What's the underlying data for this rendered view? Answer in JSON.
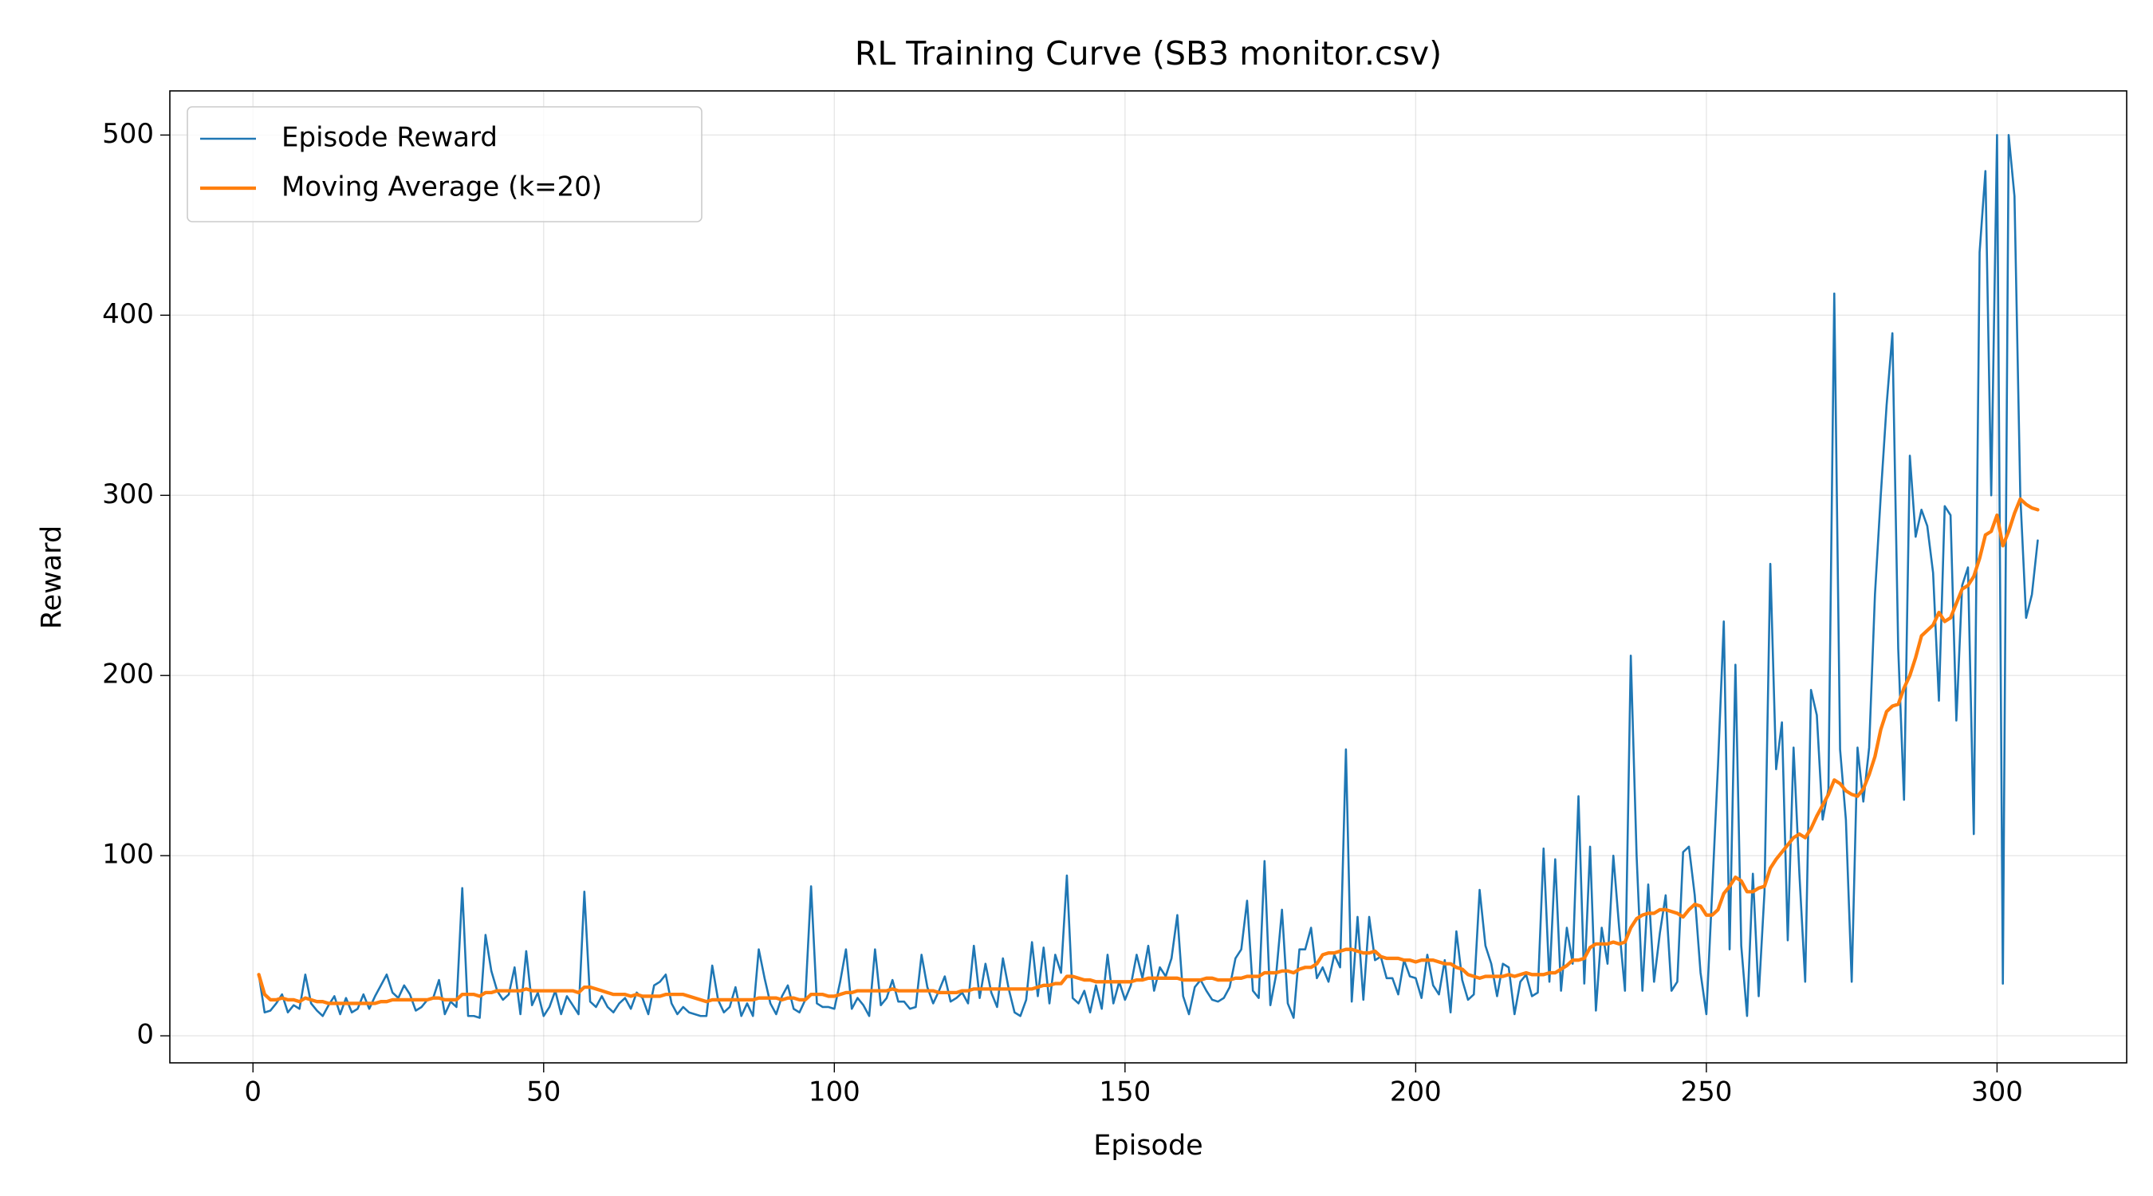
{
  "chart_data": {
    "type": "line",
    "title": "RL Training Curve (SB3 monitor.csv)",
    "xlabel": "Episode",
    "ylabel": "Reward",
    "x": [
      1,
      2,
      3,
      4,
      5,
      6,
      7,
      8,
      9,
      10,
      11,
      12,
      13,
      14,
      15,
      16,
      17,
      18,
      19,
      20,
      21,
      22,
      23,
      24,
      25,
      26,
      27,
      28,
      29,
      30,
      31,
      32,
      33,
      34,
      35,
      36,
      37,
      38,
      39,
      40,
      41,
      42,
      43,
      44,
      45,
      46,
      47,
      48,
      49,
      50,
      51,
      52,
      53,
      54,
      55,
      56,
      57,
      58,
      59,
      60,
      61,
      62,
      63,
      64,
      65,
      66,
      67,
      68,
      69,
      70,
      71,
      72,
      73,
      74,
      75,
      76,
      77,
      78,
      79,
      80,
      81,
      82,
      83,
      84,
      85,
      86,
      87,
      88,
      89,
      90,
      91,
      92,
      93,
      94,
      95,
      96,
      97,
      98,
      99,
      100,
      101,
      102,
      103,
      104,
      105,
      106,
      107,
      108,
      109,
      110,
      111,
      112,
      113,
      114,
      115,
      116,
      117,
      118,
      119,
      120,
      121,
      122,
      123,
      124,
      125,
      126,
      127,
      128,
      129,
      130,
      131,
      132,
      133,
      134,
      135,
      136,
      137,
      138,
      139,
      140,
      141,
      142,
      143,
      144,
      145,
      146,
      147,
      148,
      149,
      150,
      151,
      152,
      153,
      154,
      155,
      156,
      157,
      158,
      159,
      160,
      161,
      162,
      163,
      164,
      165,
      166,
      167,
      168,
      169,
      170,
      171,
      172,
      173,
      174,
      175,
      176,
      177,
      178,
      179,
      180,
      181,
      182,
      183,
      184,
      185,
      186,
      187,
      188,
      189,
      190,
      191,
      192,
      193,
      194,
      195,
      196,
      197,
      198,
      199,
      200,
      201,
      202,
      203,
      204,
      205,
      206,
      207,
      208,
      209,
      210,
      211,
      212,
      213,
      214,
      215,
      216,
      217,
      218,
      219,
      220,
      221,
      222,
      223,
      224,
      225,
      226,
      227,
      228,
      229,
      230,
      231,
      232,
      233,
      234,
      235,
      236,
      237,
      238,
      239,
      240,
      241,
      242,
      243,
      244,
      245,
      246,
      247,
      248,
      249,
      250,
      251,
      252,
      253,
      254,
      255,
      256,
      257,
      258,
      259,
      260,
      261,
      262,
      263,
      264,
      265,
      266,
      267,
      268,
      269,
      270,
      271,
      272,
      273,
      274,
      275,
      276,
      277,
      278,
      279,
      280,
      281,
      282,
      283,
      284,
      285,
      286,
      287,
      288,
      289,
      290,
      291,
      292,
      293,
      294,
      295,
      296,
      297,
      298,
      299,
      300,
      301,
      302,
      303,
      304,
      305,
      306,
      307
    ],
    "series": [
      {
        "name": "Episode Reward",
        "color": "#1f77b4",
        "width": 1.5,
        "values": [
          34,
          13,
          14,
          18,
          23,
          13,
          17,
          15,
          34,
          18,
          14,
          11,
          17,
          22,
          12,
          21,
          13,
          15,
          23,
          15,
          22,
          28,
          34,
          24,
          21,
          28,
          23,
          14,
          16,
          20,
          21,
          31,
          12,
          19,
          16,
          82,
          11,
          11,
          10,
          56,
          36,
          25,
          20,
          23,
          38,
          12,
          47,
          17,
          24,
          11,
          16,
          25,
          12,
          22,
          17,
          12,
          80,
          19,
          16,
          22,
          16,
          13,
          18,
          21,
          15,
          24,
          21,
          12,
          28,
          30,
          34,
          18,
          12,
          16,
          13,
          12,
          11,
          11,
          39,
          20,
          13,
          16,
          27,
          11,
          18,
          11,
          48,
          32,
          18,
          12,
          22,
          28,
          15,
          13,
          20,
          83,
          18,
          16,
          16,
          15,
          30,
          48,
          15,
          21,
          17,
          11,
          48,
          17,
          21,
          31,
          19,
          19,
          15,
          16,
          45,
          27,
          18,
          25,
          33,
          19,
          21,
          24,
          18,
          50,
          21,
          40,
          24,
          16,
          43,
          26,
          13,
          11,
          20,
          52,
          22,
          49,
          18,
          45,
          35,
          89,
          21,
          18,
          25,
          13,
          28,
          15,
          45,
          18,
          30,
          20,
          28,
          45,
          32,
          50,
          25,
          38,
          33,
          43,
          67,
          22,
          12,
          27,
          31,
          25,
          20,
          19,
          21,
          27,
          43,
          48,
          75,
          25,
          21,
          97,
          17,
          34,
          70,
          18,
          10,
          48,
          48,
          60,
          32,
          38,
          30,
          45,
          38,
          159,
          19,
          66,
          20,
          66,
          42,
          44,
          32,
          32,
          23,
          42,
          33,
          32,
          21,
          45,
          28,
          23,
          42,
          13,
          58,
          31,
          20,
          23,
          81,
          50,
          40,
          22,
          40,
          38,
          12,
          30,
          34,
          22,
          24,
          104,
          30,
          98,
          25,
          60,
          40,
          133,
          29,
          105,
          14,
          60,
          40,
          100,
          60,
          25,
          211,
          100,
          25,
          84,
          30,
          57,
          78,
          25,
          30,
          102,
          105,
          78,
          35,
          12,
          80,
          150,
          230,
          48,
          206,
          50,
          11,
          90,
          22,
          80,
          262,
          148,
          174,
          53,
          160,
          90,
          30,
          192,
          178,
          120,
          137,
          412,
          159,
          120,
          30,
          160,
          130,
          160,
          245,
          300,
          350,
          390,
          215,
          131,
          322,
          277,
          292,
          283,
          257,
          186,
          294,
          289,
          175,
          250,
          260,
          112,
          435,
          480,
          300,
          500,
          29,
          500,
          466,
          300,
          232,
          245,
          275
        ]
      },
      {
        "name": "Moving Average (k=20)",
        "color": "#ff7f0e",
        "width": 2.5,
        "values": [
          34,
          23,
          20,
          20,
          21,
          20,
          20,
          19,
          21,
          20,
          19,
          19,
          18,
          18,
          18,
          18,
          18,
          18,
          18,
          18,
          18,
          19,
          19,
          20,
          20,
          20,
          20,
          20,
          20,
          20,
          21,
          21,
          20,
          20,
          20,
          23,
          23,
          23,
          22,
          24,
          24,
          25,
          25,
          25,
          25,
          25,
          26,
          25,
          25,
          25,
          25,
          25,
          25,
          25,
          25,
          24,
          27,
          27,
          26,
          25,
          24,
          23,
          23,
          23,
          22,
          23,
          22,
          22,
          22,
          22,
          23,
          23,
          23,
          23,
          22,
          21,
          20,
          19,
          20,
          20,
          20,
          20,
          20,
          20,
          20,
          20,
          21,
          21,
          21,
          21,
          20,
          21,
          21,
          20,
          20,
          23,
          23,
          23,
          22,
          22,
          23,
          24,
          24,
          25,
          25,
          25,
          25,
          25,
          25,
          26,
          25,
          25,
          25,
          25,
          25,
          25,
          25,
          24,
          24,
          24,
          24,
          25,
          25,
          26,
          26,
          26,
          26,
          26,
          26,
          26,
          26,
          26,
          26,
          26,
          27,
          28,
          28,
          29,
          29,
          33,
          33,
          32,
          31,
          31,
          30,
          30,
          30,
          30,
          30,
          30,
          30,
          31,
          31,
          32,
          32,
          32,
          32,
          32,
          32,
          31,
          31,
          31,
          31,
          32,
          32,
          31,
          31,
          31,
          32,
          32,
          33,
          33,
          33,
          35,
          35,
          35,
          36,
          36,
          35,
          37,
          38,
          38,
          40,
          45,
          46,
          46,
          47,
          48,
          48,
          47,
          46,
          46,
          47,
          44,
          43,
          43,
          43,
          42,
          42,
          41,
          42,
          42,
          42,
          41,
          40,
          40,
          38,
          37,
          34,
          33,
          32,
          33,
          33,
          33,
          33,
          34,
          33,
          34,
          35,
          34,
          34,
          34,
          35,
          35,
          37,
          39,
          42,
          42,
          43,
          49,
          51,
          51,
          51,
          52,
          51,
          52,
          60,
          65,
          67,
          68,
          68,
          70,
          70,
          69,
          68,
          66,
          70,
          73,
          72,
          67,
          67,
          70,
          79,
          83,
          88,
          86,
          80,
          80,
          82,
          83,
          93,
          98,
          102,
          106,
          110,
          112,
          110,
          115,
          122,
          128,
          134,
          142,
          140,
          136,
          134,
          133,
          137,
          145,
          155,
          170,
          180,
          183,
          184,
          193,
          200,
          210,
          222,
          225,
          228,
          235,
          230,
          232,
          240,
          248,
          250,
          255,
          265,
          278,
          280,
          289,
          272,
          280,
          290,
          298,
          295,
          293,
          292
        ]
      }
    ],
    "xlim": [
      -14.3,
      322.3
    ],
    "ylim": [
      -15,
      524.5
    ],
    "xticks": [
      0,
      50,
      100,
      150,
      200,
      250,
      300
    ],
    "yticks": [
      0,
      100,
      200,
      300,
      400,
      500
    ],
    "grid": true,
    "legend": "upper left"
  }
}
